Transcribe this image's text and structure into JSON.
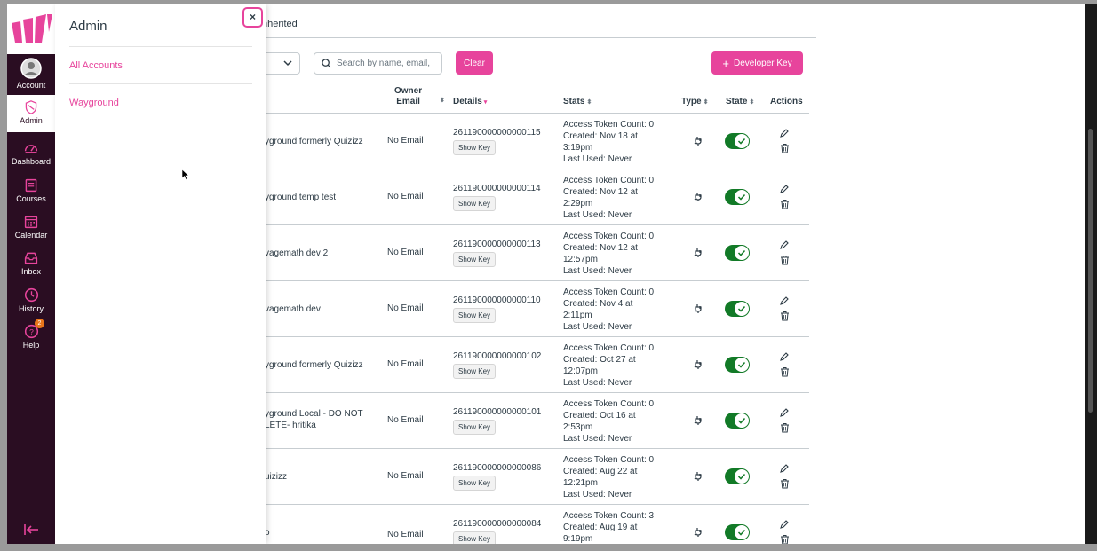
{
  "nav": {
    "items": [
      {
        "label": "Account",
        "icon": "account-icon"
      },
      {
        "label": "Admin",
        "icon": "admin-icon"
      },
      {
        "label": "Dashboard",
        "icon": "dashboard-icon"
      },
      {
        "label": "Courses",
        "icon": "courses-icon"
      },
      {
        "label": "Calendar",
        "icon": "calendar-icon"
      },
      {
        "label": "Inbox",
        "icon": "inbox-icon"
      },
      {
        "label": "History",
        "icon": "history-icon"
      },
      {
        "label": "Help",
        "icon": "help-icon",
        "badge": "2"
      }
    ],
    "collapse_icon": "collapse-arrow-icon"
  },
  "tray": {
    "title": "Admin",
    "close": "×",
    "links": [
      "All Accounts",
      "Wayground"
    ]
  },
  "tabs": {
    "inherited": "nherited"
  },
  "toolbar": {
    "search_placeholder": "Search by name, email,",
    "clear_label": "Clear",
    "devkey_label": "Developer Key",
    "devkey_icon": "+"
  },
  "table": {
    "headers": {
      "owner_email": [
        "Owner",
        "Email"
      ],
      "details": "Details",
      "stats": "Stats",
      "type": "Type",
      "state": "State",
      "actions": "Actions"
    },
    "show_key_label": "Show Key",
    "rows": [
      {
        "name": [
          "yground formerly Quizizz"
        ],
        "email": "No Email",
        "id": "261190000000000115",
        "stats": [
          "Access Token Count: 0",
          "Created: Nov 18 at",
          "3:19pm",
          "Last Used: Never"
        ]
      },
      {
        "name": [
          "yground temp test"
        ],
        "email": "No Email",
        "id": "261190000000000114",
        "stats": [
          "Access Token Count: 0",
          "Created: Nov 12 at",
          "2:29pm",
          "Last Used: Never"
        ]
      },
      {
        "name": [
          "vagemath dev 2"
        ],
        "email": "No Email",
        "id": "261190000000000113",
        "stats": [
          "Access Token Count: 0",
          "Created: Nov 12 at",
          "12:57pm",
          "Last Used: Never"
        ]
      },
      {
        "name": [
          "vagemath dev"
        ],
        "email": "No Email",
        "id": "261190000000000110",
        "stats": [
          "Access Token Count: 0",
          "Created: Nov 4 at",
          "2:11pm",
          "Last Used: Never"
        ]
      },
      {
        "name": [
          "yground formerly Quizizz"
        ],
        "email": "No Email",
        "id": "261190000000000102",
        "stats": [
          "Access Token Count: 0",
          "Created: Oct 27 at",
          "12:07pm",
          "Last Used: Never"
        ]
      },
      {
        "name": [
          "yground Local - DO NOT",
          "LETE- hritika"
        ],
        "email": "No Email",
        "id": "261190000000000101",
        "stats": [
          "Access Token Count: 0",
          "Created: Oct 16 at",
          "2:53pm",
          "Last Used: Never"
        ]
      },
      {
        "name": [
          "uizizz"
        ],
        "email": "No Email",
        "id": "261190000000000086",
        "stats": [
          "Access Token Count: 0",
          "Created: Aug 22 at",
          "12:21pm",
          "Last Used: Never"
        ]
      },
      {
        "name": [
          "o"
        ],
        "email": "No Email",
        "id": "261190000000000084",
        "stats": [
          "Access Token Count: 3",
          "Created: Aug 19 at",
          "9:19pm",
          ""
        ]
      }
    ]
  },
  "colors": {
    "brand": "#e7449c",
    "nav_bg": "#2a0d22",
    "toggle_on": "#127a27"
  }
}
